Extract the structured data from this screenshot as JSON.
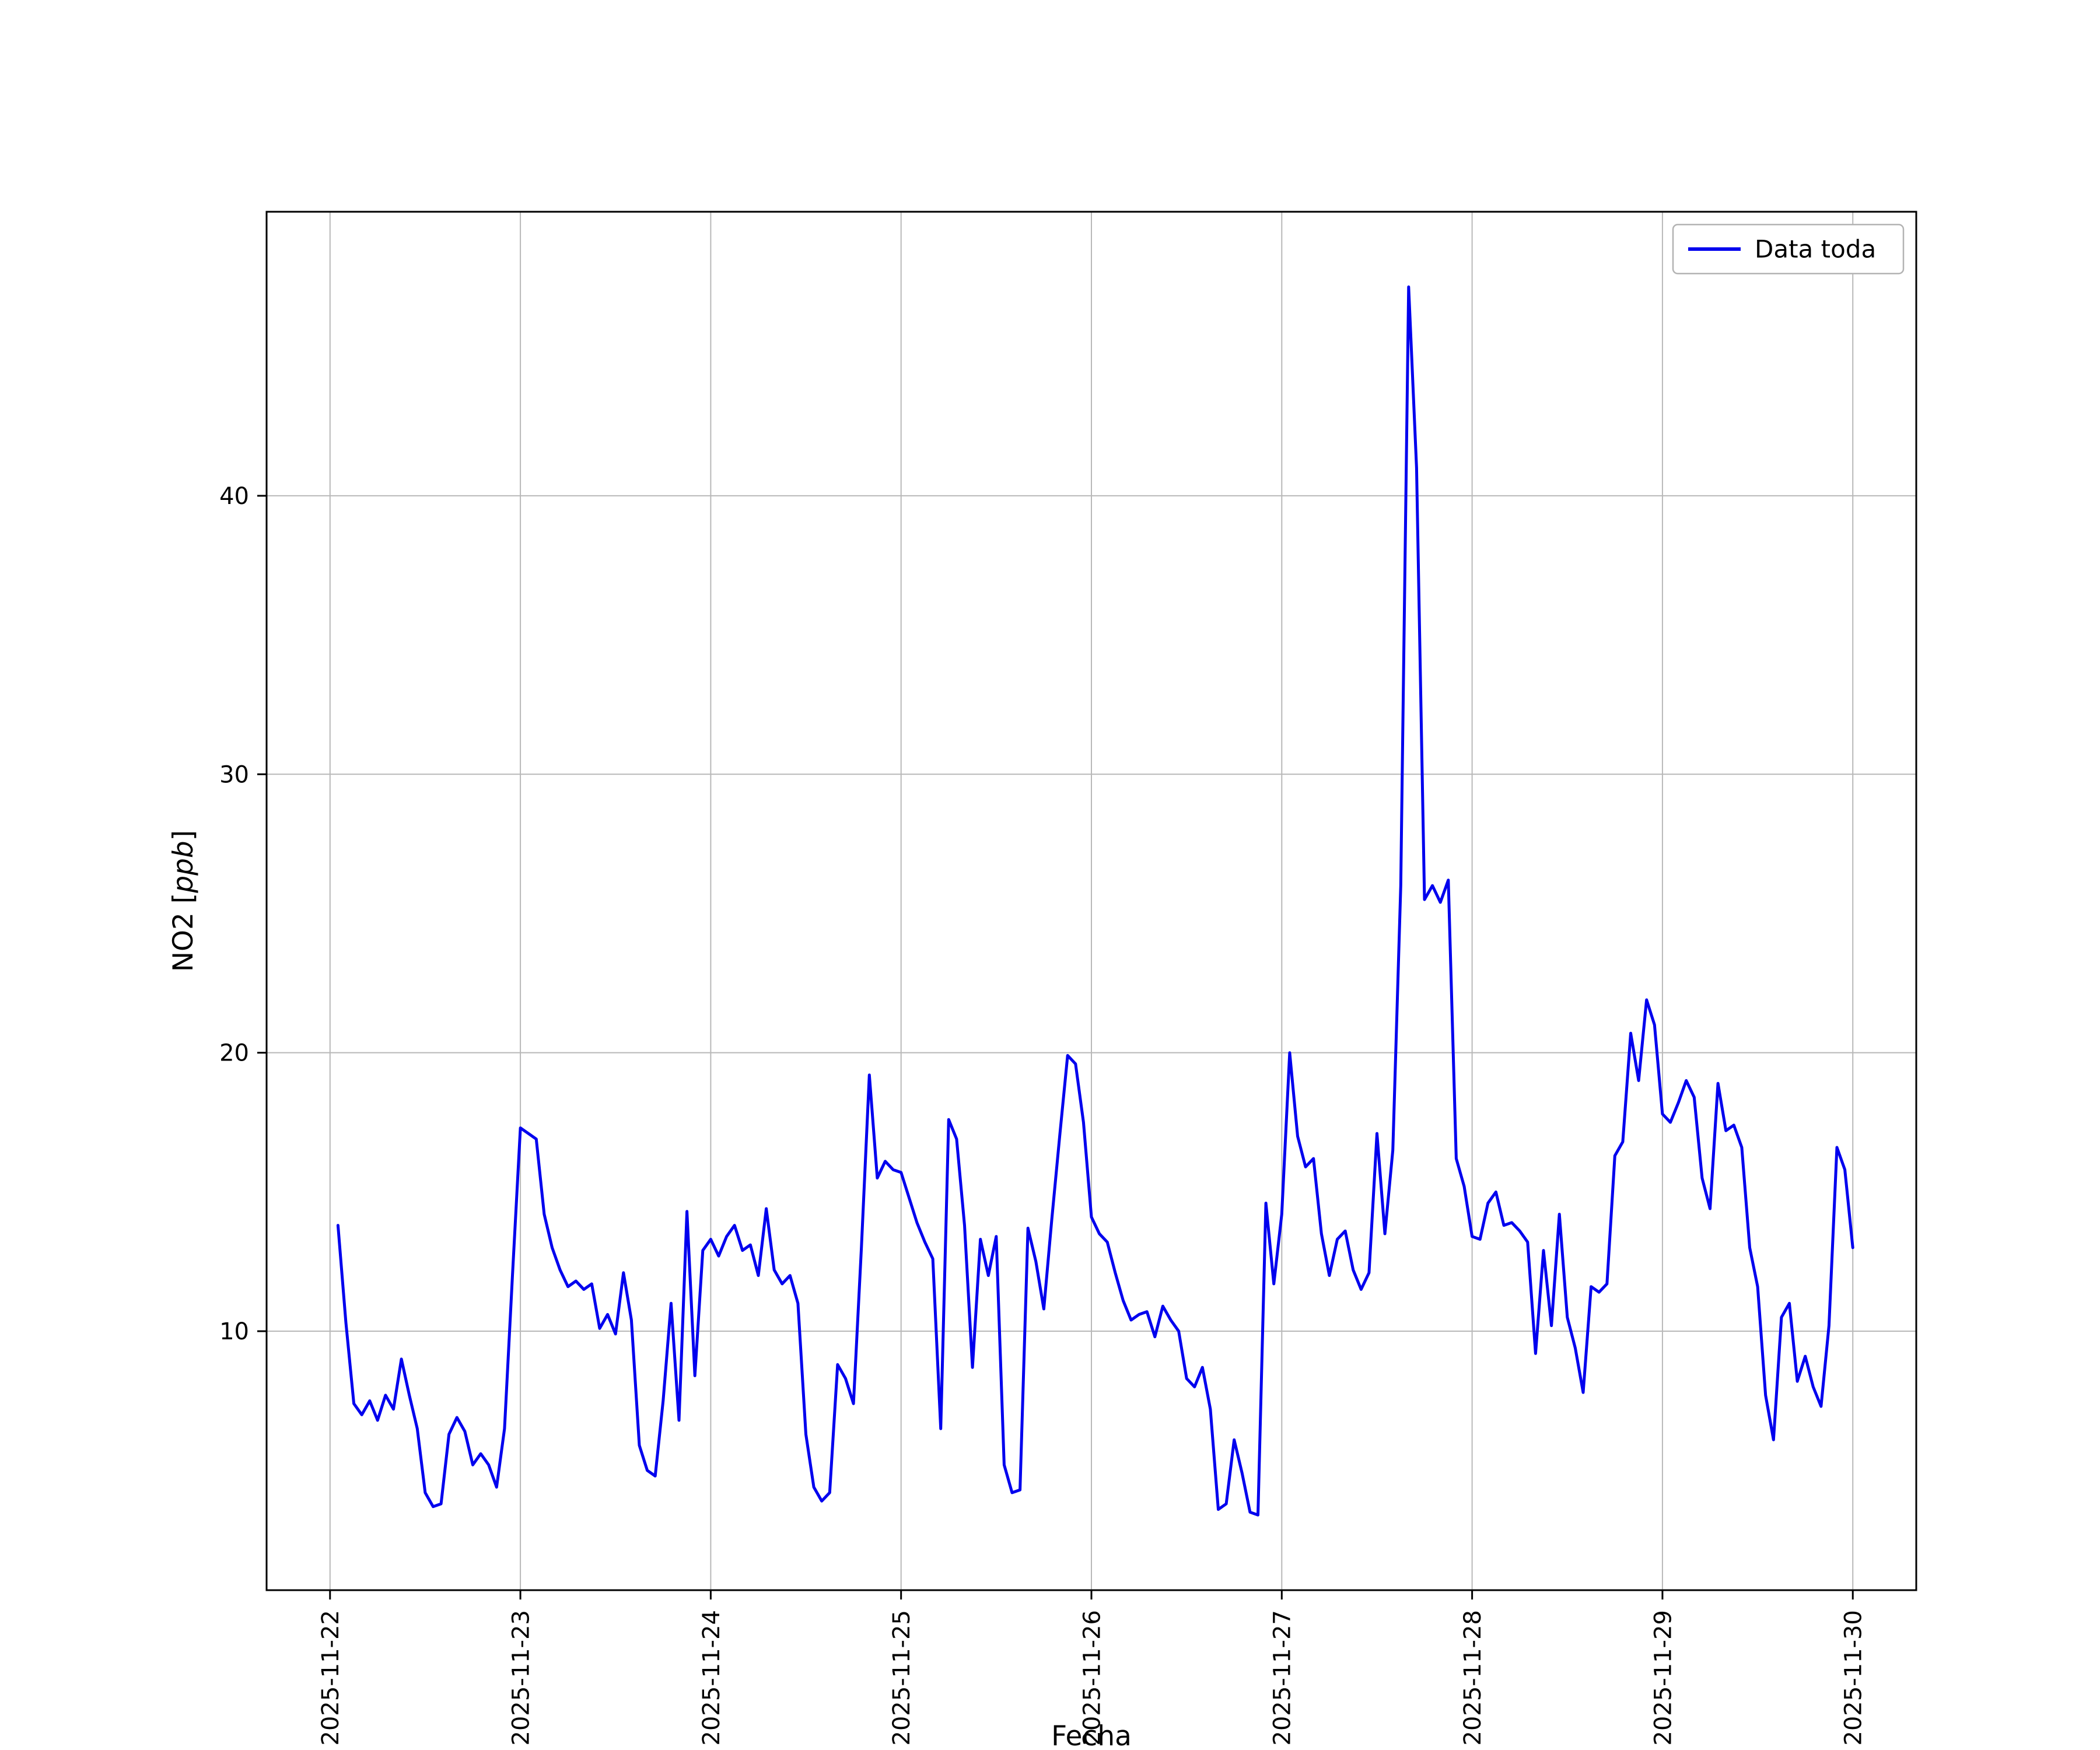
{
  "figure": {
    "background": "#ffffff"
  },
  "chart_data": {
    "type": "line",
    "title": "",
    "xlabel": "Fecha",
    "ylabel": "NO2 [ppb]",
    "ylabel_parts": {
      "prefix": "NO2 [",
      "italic": "ppb",
      "suffix": "]"
    },
    "legend": {
      "label": "Data toda",
      "position": "upper right"
    },
    "line_color": "#0000ee",
    "grid_color": "#b8b8b8",
    "axes_color": "#000000",
    "grid": true,
    "x_tick_labels": [
      "2025-11-22",
      "2025-11-23",
      "2025-11-24",
      "2025-11-25",
      "2025-11-26",
      "2025-11-27",
      "2025-11-28",
      "2025-11-29",
      "2025-11-30"
    ],
    "x_tick_hours": [
      0,
      24,
      48,
      72,
      96,
      120,
      144,
      168,
      192
    ],
    "x_start_hour": 1,
    "x_interval_hours": 1,
    "xlim_hours": [
      -8,
      200
    ],
    "ylim": [
      0.7,
      50.2
    ],
    "y_ticks": [
      10,
      20,
      30,
      40
    ],
    "values": [
      13.8,
      10.3,
      7.4,
      7.0,
      7.5,
      6.8,
      7.7,
      7.2,
      9.0,
      7.7,
      6.5,
      4.2,
      3.7,
      3.8,
      6.3,
      6.9,
      6.4,
      5.2,
      5.6,
      5.2,
      4.4,
      6.5,
      12.0,
      17.3,
      17.1,
      16.9,
      14.2,
      13.0,
      12.2,
      11.6,
      11.8,
      11.5,
      11.7,
      10.1,
      10.6,
      9.9,
      12.1,
      10.4,
      5.9,
      5.0,
      4.8,
      7.5,
      11.0,
      6.8,
      14.3,
      8.4,
      12.9,
      13.3,
      12.7,
      13.4,
      13.8,
      12.9,
      13.1,
      12.0,
      14.4,
      12.2,
      11.7,
      12.0,
      11.0,
      6.3,
      4.4,
      3.9,
      4.2,
      8.8,
      8.3,
      7.4,
      13.0,
      19.2,
      15.5,
      16.1,
      15.8,
      15.7,
      14.8,
      13.9,
      13.2,
      12.6,
      6.5,
      17.6,
      16.9,
      13.8,
      8.7,
      13.3,
      12.0,
      13.4,
      5.2,
      4.2,
      4.3,
      13.7,
      12.5,
      10.8,
      14.0,
      17.0,
      19.9,
      19.6,
      17.5,
      14.1,
      13.5,
      13.2,
      12.1,
      11.1,
      10.4,
      10.6,
      10.7,
      9.8,
      10.9,
      10.4,
      10.0,
      8.3,
      8.0,
      8.7,
      7.2,
      3.6,
      3.8,
      6.1,
      4.9,
      3.5,
      3.4,
      14.6,
      11.7,
      14.2,
      20.0,
      17.0,
      15.9,
      16.2,
      13.5,
      12.0,
      13.3,
      13.6,
      12.2,
      11.5,
      12.1,
      17.1,
      13.5,
      16.5,
      26.0,
      47.5,
      41.0,
      25.5,
      26.0,
      25.4,
      26.2,
      16.2,
      15.2,
      13.4,
      13.3,
      14.6,
      15.0,
      13.8,
      13.9,
      13.6,
      13.2,
      9.2,
      12.9,
      10.2,
      14.2,
      10.5,
      9.4,
      7.8,
      11.6,
      11.4,
      11.7,
      16.3,
      16.8,
      20.7,
      19.0,
      21.9,
      21.0,
      17.8,
      17.5,
      18.2,
      19.0,
      18.4,
      15.5,
      14.4,
      18.9,
      17.2,
      17.4,
      16.6,
      13.0,
      11.6,
      7.7,
      6.1,
      10.5,
      11.0,
      8.2,
      9.1,
      8.0,
      7.3,
      10.2,
      16.6,
      15.8,
      13.0
    ]
  }
}
